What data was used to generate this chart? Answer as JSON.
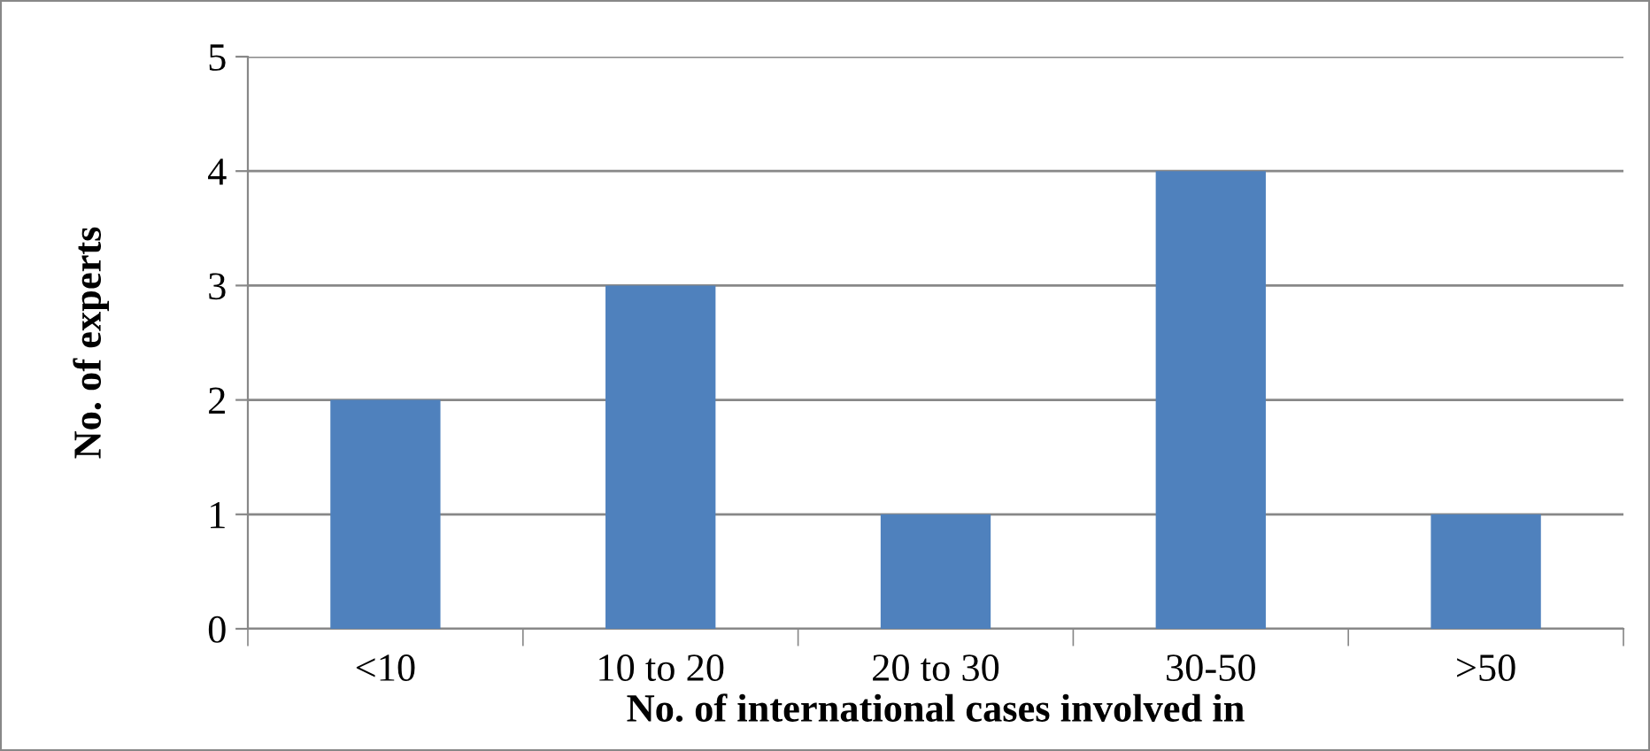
{
  "chart_data": {
    "type": "bar",
    "xlabel": "No. of international cases involved in",
    "ylabel": "No. of experts",
    "categories": [
      "<10",
      "10 to 20",
      "20 to 30",
      "30-50",
      ">50"
    ],
    "values": [
      2,
      3,
      1,
      4,
      1
    ],
    "color": "#4f81bd",
    "ylim": [
      0,
      5
    ],
    "yticks": [
      0,
      1,
      2,
      3,
      4,
      5
    ],
    "grid": "y",
    "legend": false
  }
}
